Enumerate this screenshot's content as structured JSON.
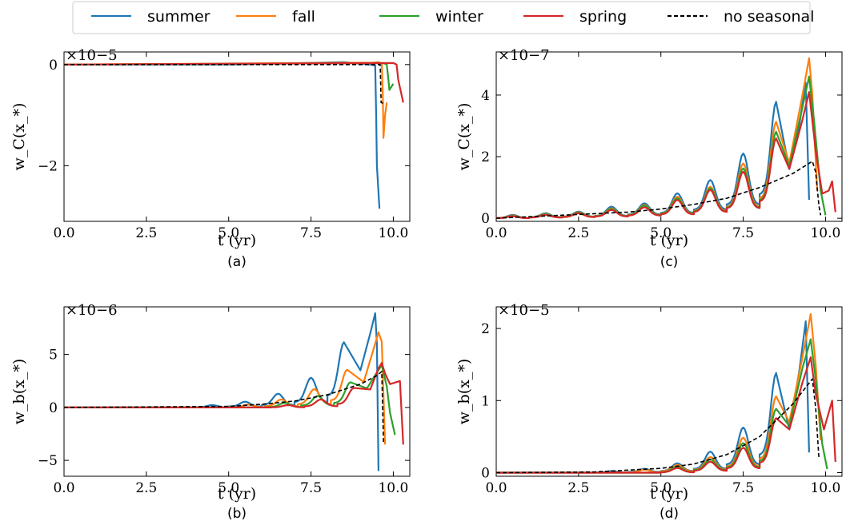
{
  "legend": {
    "placement": "top-center",
    "entries": [
      {
        "label": "summer",
        "color": "#1f77b4",
        "dash": false
      },
      {
        "label": "fall",
        "color": "#ff7f0e",
        "dash": false
      },
      {
        "label": "winter",
        "color": "#2ca02c",
        "dash": false
      },
      {
        "label": "spring",
        "color": "#d62728",
        "dash": false
      },
      {
        "label": "no seasonal",
        "color": "#000000",
        "dash": true
      }
    ]
  },
  "chart_data": [
    {
      "type": "line",
      "panel": "(a)",
      "xlabel": "t (yr)",
      "ylabel": "w_C(x_*)",
      "multiplier": "×10−5",
      "xlim": [
        0,
        10.5
      ],
      "ylim": [
        -3.1,
        0.25
      ],
      "xticks": [
        "0.0",
        "2.5",
        "5.0",
        "7.5",
        "10.0"
      ],
      "xtick_values": [
        0,
        2.5,
        5,
        7.5,
        10
      ],
      "yticks": [
        "0",
        "−2"
      ],
      "ytick_values": [
        0,
        -2
      ],
      "series": [
        {
          "name": "summer",
          "points": [
            [
              0,
              0
            ],
            [
              5,
              0
            ],
            [
              6.5,
              0.02
            ],
            [
              8.5,
              0.05
            ],
            [
              9.3,
              0
            ],
            [
              9.45,
              -0.02
            ],
            [
              9.48,
              -1.0
            ],
            [
              9.5,
              -2.0
            ],
            [
              9.58,
              -2.85
            ]
          ]
        },
        {
          "name": "fall",
          "points": [
            [
              0,
              0
            ],
            [
              9.4,
              0.04
            ],
            [
              9.55,
              0.05
            ],
            [
              9.65,
              0.02
            ],
            [
              9.68,
              -0.6
            ],
            [
              9.7,
              -1.45
            ],
            [
              9.75,
              -1.0
            ],
            [
              9.8,
              -0.75
            ]
          ]
        },
        {
          "name": "winter",
          "points": [
            [
              0,
              0
            ],
            [
              9.7,
              0.03
            ],
            [
              9.8,
              0
            ],
            [
              9.85,
              -0.3
            ],
            [
              9.88,
              -0.5
            ],
            [
              10.0,
              -0.38
            ]
          ]
        },
        {
          "name": "spring",
          "points": [
            [
              0,
              0
            ],
            [
              10.0,
              0.03
            ],
            [
              10.1,
              0
            ],
            [
              10.15,
              -0.3
            ],
            [
              10.3,
              -0.75
            ]
          ]
        },
        {
          "name": "no seasonal",
          "points": [
            [
              0,
              0
            ],
            [
              9.6,
              0
            ],
            [
              9.63,
              -0.75
            ],
            [
              9.75,
              -0.78
            ]
          ]
        }
      ]
    },
    {
      "type": "line",
      "panel": "(b)",
      "xlabel": "t (yr)",
      "ylabel": "w_b(x_*)",
      "multiplier": "×10−6",
      "xlim": [
        0,
        10.5
      ],
      "ylim": [
        -6.5,
        9.5
      ],
      "xticks": [
        "0.0",
        "2.5",
        "5.0",
        "7.5",
        "10.0"
      ],
      "xtick_values": [
        0,
        2.5,
        5,
        7.5,
        10
      ],
      "yticks": [
        "5",
        "0",
        "−5"
      ],
      "ytick_values": [
        5,
        0,
        -5
      ],
      "series": [
        {
          "name": "summer",
          "peaks": [
            [
              4.5,
              0.2
            ],
            [
              5.5,
              0.5
            ],
            [
              6.5,
              1.2
            ],
            [
              7.5,
              2.6
            ],
            [
              8.5,
              5.7
            ]
          ],
          "end": [
            [
              9.0,
              3.5
            ],
            [
              9.3,
              7.0
            ],
            [
              9.45,
              8.9
            ],
            [
              9.5,
              6.0
            ],
            [
              9.55,
              -6.0
            ]
          ]
        },
        {
          "name": "fall",
          "peaks": [
            [
              5.6,
              0.25
            ],
            [
              6.6,
              0.7
            ],
            [
              7.6,
              1.6
            ],
            [
              8.6,
              3.3
            ]
          ],
          "end": [
            [
              9.1,
              2.4
            ],
            [
              9.4,
              5.5
            ],
            [
              9.55,
              7.1
            ],
            [
              9.65,
              6.2
            ],
            [
              9.75,
              -3.5
            ]
          ]
        },
        {
          "name": "winter",
          "peaks": [
            [
              6.7,
              0.4
            ],
            [
              7.7,
              1.0
            ],
            [
              8.7,
              2.2
            ]
          ],
          "end": [
            [
              9.2,
              1.8
            ],
            [
              9.5,
              3.3
            ],
            [
              9.65,
              4.0
            ],
            [
              9.8,
              2.0
            ],
            [
              9.9,
              -0.5
            ],
            [
              10.05,
              -2.6
            ]
          ]
        },
        {
          "name": "spring",
          "peaks": [
            [
              6.8,
              0.2
            ],
            [
              7.8,
              0.7
            ],
            [
              8.8,
              1.7
            ]
          ],
          "end": [
            [
              9.3,
              1.7
            ],
            [
              9.55,
              3.7
            ],
            [
              9.65,
              4.2
            ],
            [
              9.75,
              3.2
            ],
            [
              9.9,
              2.2
            ],
            [
              10.2,
              2.5
            ],
            [
              10.3,
              -3.5
            ]
          ]
        },
        {
          "name": "no seasonal",
          "points": [
            [
              0,
              0
            ],
            [
              5,
              0.1
            ],
            [
              6,
              0.3
            ],
            [
              7,
              0.6
            ],
            [
              8,
              1.2
            ],
            [
              9,
              2.2
            ],
            [
              9.5,
              3.0
            ],
            [
              9.65,
              3.4
            ],
            [
              9.7,
              -3.3
            ]
          ]
        }
      ]
    },
    {
      "type": "line",
      "panel": "(c)",
      "xlabel": "t (yr)",
      "ylabel": "w_C(x_*)",
      "multiplier": "×10−7",
      "xlim": [
        0,
        10.5
      ],
      "ylim": [
        -0.1,
        5.4
      ],
      "xticks": [
        "0.0",
        "2.5",
        "5.0",
        "7.5",
        "10.0"
      ],
      "xtick_values": [
        0,
        2.5,
        5,
        7.5,
        10
      ],
      "yticks": [
        "0",
        "2",
        "4"
      ],
      "ytick_values": [
        0,
        2,
        4
      ],
      "series": [
        {
          "name": "summer",
          "peaks": [
            [
              0.5,
              0.1
            ],
            [
              1.5,
              0.15
            ],
            [
              2.5,
              0.2
            ],
            [
              3.5,
              0.35
            ],
            [
              4.5,
              0.45
            ],
            [
              5.5,
              0.75
            ],
            [
              6.5,
              1.15
            ],
            [
              7.5,
              1.95
            ],
            [
              8.5,
              3.5
            ]
          ],
          "end": [
            [
              8.9,
              1.6
            ],
            [
              9.2,
              3.0
            ],
            [
              9.4,
              4.4
            ],
            [
              9.5,
              0.6
            ]
          ]
        },
        {
          "name": "fall",
          "peaks": [
            [
              0.5,
              0.08
            ],
            [
              1.5,
              0.13
            ],
            [
              2.5,
              0.18
            ],
            [
              3.5,
              0.3
            ],
            [
              4.5,
              0.4
            ],
            [
              5.5,
              0.65
            ],
            [
              6.5,
              0.95
            ],
            [
              7.5,
              1.65
            ],
            [
              8.5,
              2.9
            ]
          ],
          "end": [
            [
              8.9,
              1.8
            ],
            [
              9.3,
              4.0
            ],
            [
              9.5,
              5.2
            ],
            [
              9.6,
              4.0
            ],
            [
              9.75,
              0.9
            ]
          ]
        },
        {
          "name": "winter",
          "peaks": [
            [
              0.5,
              0.07
            ],
            [
              1.5,
              0.12
            ],
            [
              2.5,
              0.17
            ],
            [
              3.5,
              0.28
            ],
            [
              4.5,
              0.38
            ],
            [
              5.5,
              0.6
            ],
            [
              6.5,
              0.9
            ],
            [
              7.5,
              1.5
            ],
            [
              8.5,
              2.6
            ]
          ],
          "end": [
            [
              8.9,
              1.7
            ],
            [
              9.3,
              3.6
            ],
            [
              9.5,
              4.6
            ],
            [
              9.65,
              3.2
            ],
            [
              9.85,
              0.9
            ],
            [
              10.0,
              0.1
            ]
          ]
        },
        {
          "name": "spring",
          "peaks": [
            [
              0.5,
              0.06
            ],
            [
              1.5,
              0.1
            ],
            [
              2.5,
              0.15
            ],
            [
              3.5,
              0.25
            ],
            [
              4.5,
              0.33
            ],
            [
              5.5,
              0.55
            ],
            [
              6.5,
              0.85
            ],
            [
              7.5,
              1.4
            ],
            [
              8.5,
              2.4
            ]
          ],
          "end": [
            [
              8.9,
              1.6
            ],
            [
              9.3,
              3.2
            ],
            [
              9.5,
              4.1
            ],
            [
              9.7,
              2.2
            ],
            [
              9.9,
              0.8
            ],
            [
              10.1,
              0.9
            ],
            [
              10.2,
              1.2
            ],
            [
              10.3,
              0.2
            ]
          ]
        },
        {
          "name": "no seasonal",
          "points": [
            [
              0,
              0
            ],
            [
              2,
              0.1
            ],
            [
              4,
              0.2
            ],
            [
              5,
              0.3
            ],
            [
              6,
              0.45
            ],
            [
              7,
              0.65
            ],
            [
              8,
              1.0
            ],
            [
              9,
              1.45
            ],
            [
              9.6,
              1.85
            ],
            [
              9.7,
              1.5
            ],
            [
              9.8,
              0.4
            ],
            [
              9.85,
              0.1
            ]
          ]
        }
      ]
    },
    {
      "type": "line",
      "panel": "(d)",
      "xlabel": "t (yr)",
      "ylabel": "w_b(x_*)",
      "multiplier": "×10−5",
      "xlim": [
        0,
        10.5
      ],
      "ylim": [
        -0.05,
        2.3
      ],
      "xticks": [
        "0.0",
        "2.5",
        "5.0",
        "7.5",
        "10.0"
      ],
      "xtick_values": [
        0,
        2.5,
        5,
        7.5,
        10
      ],
      "yticks": [
        "0",
        "1",
        "2"
      ],
      "ytick_values": [
        0,
        1,
        2
      ],
      "series": [
        {
          "name": "summer",
          "peaks": [
            [
              3.5,
              0.02
            ],
            [
              4.5,
              0.05
            ],
            [
              5.5,
              0.12
            ],
            [
              6.5,
              0.27
            ],
            [
              7.5,
              0.58
            ],
            [
              8.5,
              1.28
            ]
          ],
          "end": [
            [
              8.9,
              0.6
            ],
            [
              9.2,
              1.4
            ],
            [
              9.4,
              2.1
            ],
            [
              9.5,
              0.28
            ]
          ]
        },
        {
          "name": "fall",
          "peaks": [
            [
              4.5,
              0.04
            ],
            [
              5.5,
              0.1
            ],
            [
              6.5,
              0.2
            ],
            [
              7.5,
              0.45
            ],
            [
              8.5,
              0.98
            ]
          ],
          "end": [
            [
              8.9,
              0.7
            ],
            [
              9.3,
              1.6
            ],
            [
              9.55,
              2.2
            ],
            [
              9.7,
              1.5
            ],
            [
              9.85,
              0.45
            ]
          ]
        },
        {
          "name": "winter",
          "peaks": [
            [
              5.5,
              0.08
            ],
            [
              6.5,
              0.17
            ],
            [
              7.5,
              0.38
            ],
            [
              8.5,
              0.82
            ]
          ],
          "end": [
            [
              8.9,
              0.65
            ],
            [
              9.3,
              1.45
            ],
            [
              9.55,
              1.85
            ],
            [
              9.7,
              1.3
            ],
            [
              9.9,
              0.4
            ],
            [
              10.05,
              0.05
            ]
          ]
        },
        {
          "name": "spring",
          "peaks": [
            [
              5.5,
              0.06
            ],
            [
              6.5,
              0.14
            ],
            [
              7.5,
              0.32
            ],
            [
              8.5,
              0.7
            ]
          ],
          "end": [
            [
              8.9,
              0.6
            ],
            [
              9.3,
              1.25
            ],
            [
              9.55,
              1.6
            ],
            [
              9.7,
              1.1
            ],
            [
              9.95,
              0.6
            ],
            [
              10.2,
              1.0
            ],
            [
              10.3,
              0.15
            ]
          ]
        },
        {
          "name": "no seasonal",
          "points": [
            [
              0,
              0
            ],
            [
              3,
              0.01
            ],
            [
              5,
              0.06
            ],
            [
              6,
              0.12
            ],
            [
              7,
              0.25
            ],
            [
              8,
              0.5
            ],
            [
              9,
              0.95
            ],
            [
              9.6,
              1.3
            ],
            [
              9.7,
              0.9
            ],
            [
              9.8,
              0.2
            ]
          ]
        }
      ]
    }
  ]
}
